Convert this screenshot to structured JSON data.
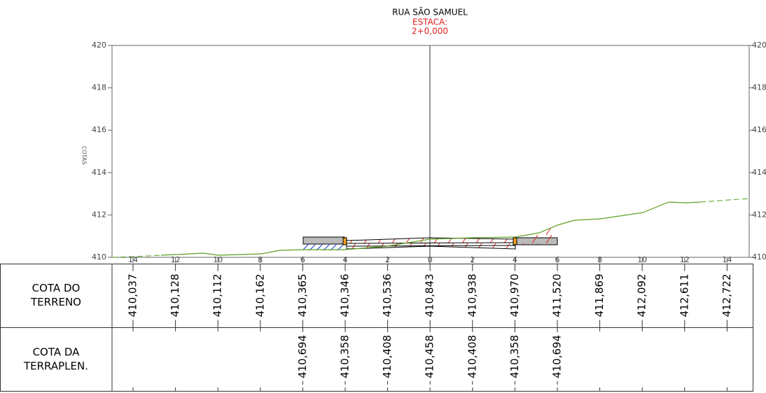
{
  "header": {
    "title": "RUA SÃO SAMUEL",
    "estaca_label": "ESTACA:",
    "estaca": "2+0,000"
  },
  "axis": {
    "label": "COTAS",
    "ticks": [
      "420",
      "418",
      "416",
      "414",
      "412",
      "410"
    ]
  },
  "offsets": [
    "14",
    "12",
    "10",
    "8",
    "6",
    "4",
    "2",
    "0",
    "2",
    "4",
    "6",
    "8",
    "10",
    "12",
    "14"
  ],
  "table": {
    "rows": [
      {
        "label": [
          "COTA DO",
          "TERRENO"
        ],
        "values": [
          "410,037",
          "410,128",
          "410,112",
          "410,162",
          "410,365",
          "410,346",
          "410,536",
          "410,843",
          "410,938",
          "410,970",
          "411,520",
          "411,869",
          "412,092",
          "412,611",
          "412,722"
        ]
      },
      {
        "label": [
          "COTA DA",
          "TERRAPLEN."
        ],
        "values": [
          null,
          null,
          null,
          null,
          "410,694",
          "410,358",
          "410,408",
          "410,458",
          "410,408",
          "410,358",
          "410,694",
          null,
          null,
          null,
          null
        ]
      }
    ]
  }
}
